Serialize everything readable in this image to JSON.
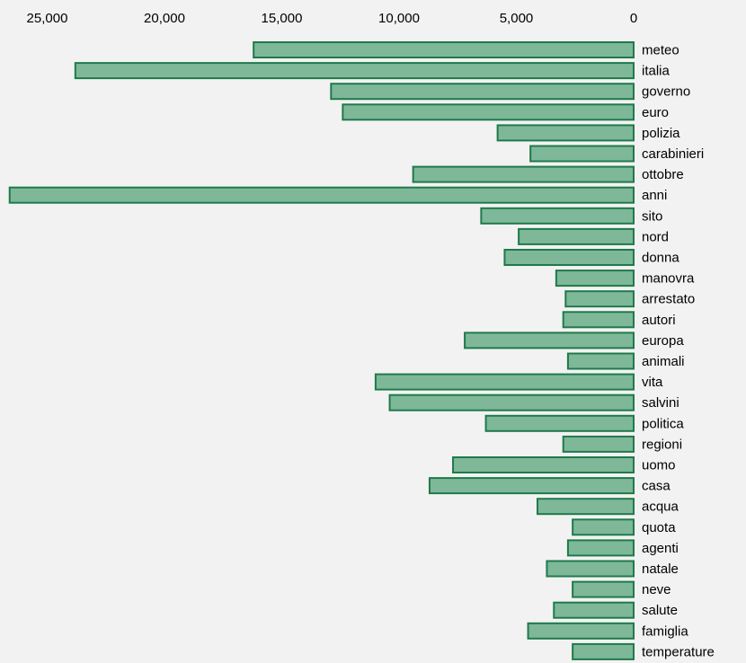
{
  "chart_data": {
    "type": "bar",
    "orientation": "horizontal",
    "x_axis": "reversed",
    "x_tick_position": "top",
    "xlim": [
      0,
      26500
    ],
    "xticks": [
      25000,
      20000,
      15000,
      10000,
      5000,
      0
    ],
    "xtick_labels": [
      "25,000",
      "20,000",
      "15,000",
      "10,000",
      "5,000",
      "0"
    ],
    "title": "",
    "xlabel": "",
    "ylabel": "",
    "grid": false,
    "colors": {
      "bar_fill": "#7eb899",
      "bar_stroke": "#1f7a4a",
      "background": "#f2f2f2"
    },
    "categories": [
      "meteo",
      "italia",
      "governo",
      "euro",
      "polizia",
      "carabinieri",
      "ottobre",
      "anni",
      "sito",
      "nord",
      "donna",
      "manovra",
      "arrestato",
      "autori",
      "europa",
      "animali",
      "vita",
      "salvini",
      "politica",
      "regioni",
      "uomo",
      "casa",
      "acqua",
      "quota",
      "agenti",
      "natale",
      "neve",
      "salute",
      "famiglia",
      "temperature"
    ],
    "values": [
      16200,
      23800,
      12900,
      12400,
      5800,
      4400,
      9400,
      26600,
      6500,
      4900,
      5500,
      3300,
      2900,
      3000,
      7200,
      2800,
      11000,
      10400,
      6300,
      3000,
      7700,
      8700,
      4100,
      2600,
      2800,
      3700,
      2600,
      3400,
      4500,
      2600
    ]
  }
}
